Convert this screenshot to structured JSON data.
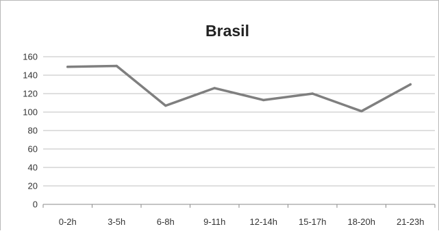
{
  "chart_data": {
    "type": "line",
    "title": "Brasil",
    "categories": [
      "0-2h",
      "3-5h",
      "6-8h",
      "9-11h",
      "12-14h",
      "15-17h",
      "18-20h",
      "21-23h"
    ],
    "series": [
      {
        "values": [
          149,
          150,
          107,
          126,
          113,
          120,
          101,
          130
        ],
        "color": "#7f7f7f"
      }
    ],
    "ylim": [
      0,
      160
    ],
    "yticks": [
      0,
      20,
      40,
      60,
      80,
      100,
      120,
      140,
      160
    ],
    "grid": true,
    "legend": "none",
    "gridColor": "#bfbfbf",
    "axisColor": "#8a8a8a"
  }
}
